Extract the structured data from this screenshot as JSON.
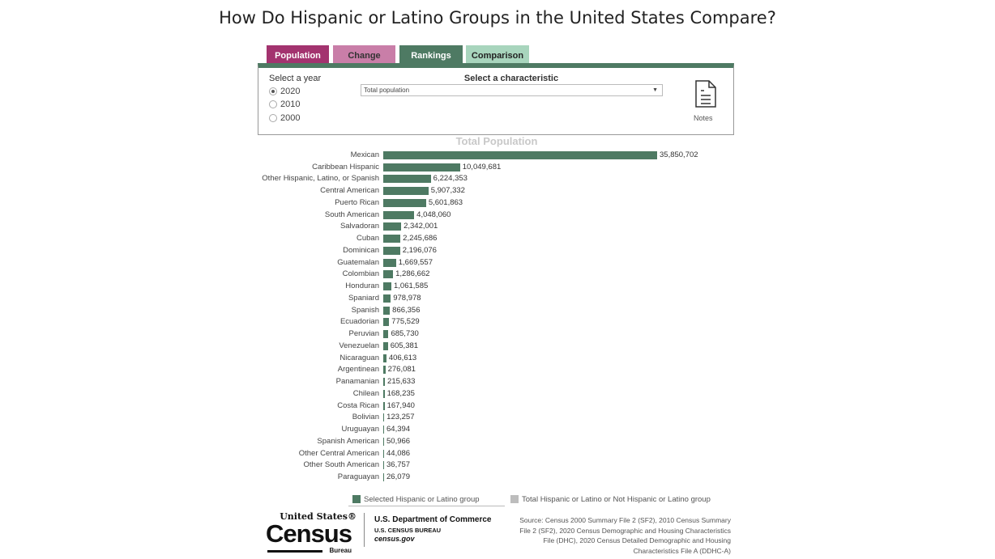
{
  "title": "How Do Hispanic or Latino Groups in the United States Compare?",
  "tabs": [
    {
      "label": "Population",
      "color": "#a3336f",
      "text": "#fff"
    },
    {
      "label": "Change",
      "color": "#c97ea8",
      "text": "#333"
    },
    {
      "label": "Rankings",
      "color": "#4e7a63",
      "text": "#fff"
    },
    {
      "label": "Comparison",
      "color": "#a8d5bd",
      "text": "#222"
    }
  ],
  "controls": {
    "year_label": "Select a year",
    "years": [
      "2020",
      "2010",
      "2000"
    ],
    "selected_year": "2020",
    "characteristic_label": "Select a characteristic",
    "characteristic_value": "Total population",
    "notes_label": "Notes"
  },
  "chart_data": {
    "type": "bar",
    "orientation": "horizontal",
    "title": "Total Population",
    "bar_color": "#4e7a63",
    "categories": [
      "Mexican",
      "Caribbean Hispanic",
      "Other Hispanic, Latino, or Spanish",
      "Central American",
      "Puerto Rican",
      "South American",
      "Salvadoran",
      "Cuban",
      "Dominican",
      "Guatemalan",
      "Colombian",
      "Honduran",
      "Spaniard",
      "Spanish",
      "Ecuadorian",
      "Peruvian",
      "Venezuelan",
      "Nicaraguan",
      "Argentinean",
      "Panamanian",
      "Chilean",
      "Costa Rican",
      "Bolivian",
      "Uruguayan",
      "Spanish American",
      "Other Central American",
      "Other South American",
      "Paraguayan"
    ],
    "values": [
      35850702,
      10049681,
      6224353,
      5907332,
      5601863,
      4048060,
      2342001,
      2245686,
      2196076,
      1669557,
      1286662,
      1061585,
      978978,
      866356,
      775529,
      685730,
      605381,
      406613,
      276081,
      215633,
      168235,
      167940,
      123257,
      64394,
      50966,
      44086,
      36757,
      26079
    ],
    "labels": [
      "35,850,702",
      "10,049,681",
      "6,224,353",
      "5,907,332",
      "5,601,863",
      "4,048,060",
      "2,342,001",
      "2,245,686",
      "2,196,076",
      "1,669,557",
      "1,286,662",
      "1,061,585",
      "978,978",
      "866,356",
      "775,529",
      "685,730",
      "605,381",
      "406,613",
      "276,081",
      "215,633",
      "168,235",
      "167,940",
      "123,257",
      "64,394",
      "50,966",
      "44,086",
      "36,757",
      "26,079"
    ]
  },
  "legend": [
    {
      "label": "Selected Hispanic or Latino group",
      "color": "#4e7a63"
    },
    {
      "label": "Total Hispanic or Latino or Not Hispanic or Latino group",
      "color": "#bdbdbd"
    }
  ],
  "footer": {
    "logo_text": "United States® Census Bureau",
    "dept": "U.S. Department of Commerce",
    "bureau": "U.S. CENSUS BUREAU",
    "site": "census.gov",
    "source": "Source: Census 2000 Summary File 2 (SF2), 2010 Census Summary File 2 (SF2), 2020 Census Demographic and Housing Characteristics File (DHC), 2020 Census Detailed Demographic and Housing Characteristics File A (DDHC-A)"
  }
}
